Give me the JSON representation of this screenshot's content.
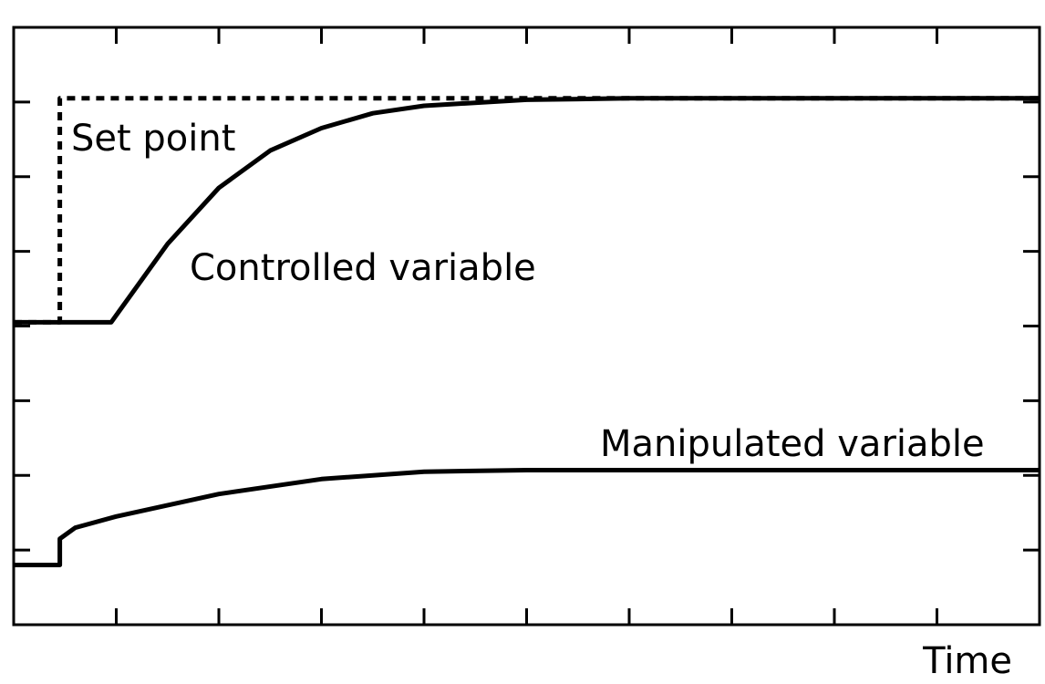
{
  "chart_data": {
    "type": "line",
    "title": "",
    "xlabel": "Time",
    "ylabel": "",
    "grid": false,
    "xlim": [
      0,
      10
    ],
    "ylim": [
      0,
      8
    ],
    "x_ticks": [
      1,
      2,
      3,
      4,
      5,
      6,
      7,
      8,
      9
    ],
    "y_ticks_left": [
      1,
      2,
      3,
      4,
      5,
      6,
      7
    ],
    "y_ticks_right": [
      1,
      2,
      3,
      4,
      5,
      6,
      7
    ],
    "series": [
      {
        "name": "Set point",
        "style": "dashed",
        "x": [
          0,
          0.45,
          0.45,
          10
        ],
        "y": [
          4.05,
          4.05,
          7.05,
          7.05
        ]
      },
      {
        "name": "Controlled variable",
        "style": "solid",
        "x": [
          0,
          0.95,
          1.5,
          2.0,
          2.5,
          3.0,
          3.5,
          4.0,
          5.0,
          6.0,
          7.0,
          8.0,
          9.0,
          10.0
        ],
        "y": [
          4.05,
          4.05,
          5.1,
          5.85,
          6.35,
          6.65,
          6.85,
          6.95,
          7.03,
          7.05,
          7.05,
          7.05,
          7.05,
          7.05
        ]
      },
      {
        "name": "Manipulated variable",
        "style": "solid",
        "x": [
          0,
          0.45,
          0.45,
          0.6,
          1.0,
          2.0,
          3.0,
          4.0,
          5.0,
          6.0,
          8.0,
          10.0
        ],
        "y": [
          0.8,
          0.8,
          1.15,
          1.3,
          1.45,
          1.75,
          1.95,
          2.05,
          2.07,
          2.07,
          2.07,
          2.07
        ]
      }
    ],
    "annotations": [
      "Set point",
      "Controlled variable",
      "Manipulated variable"
    ]
  },
  "colors": {
    "line": "#000000",
    "background": "#ffffff"
  }
}
